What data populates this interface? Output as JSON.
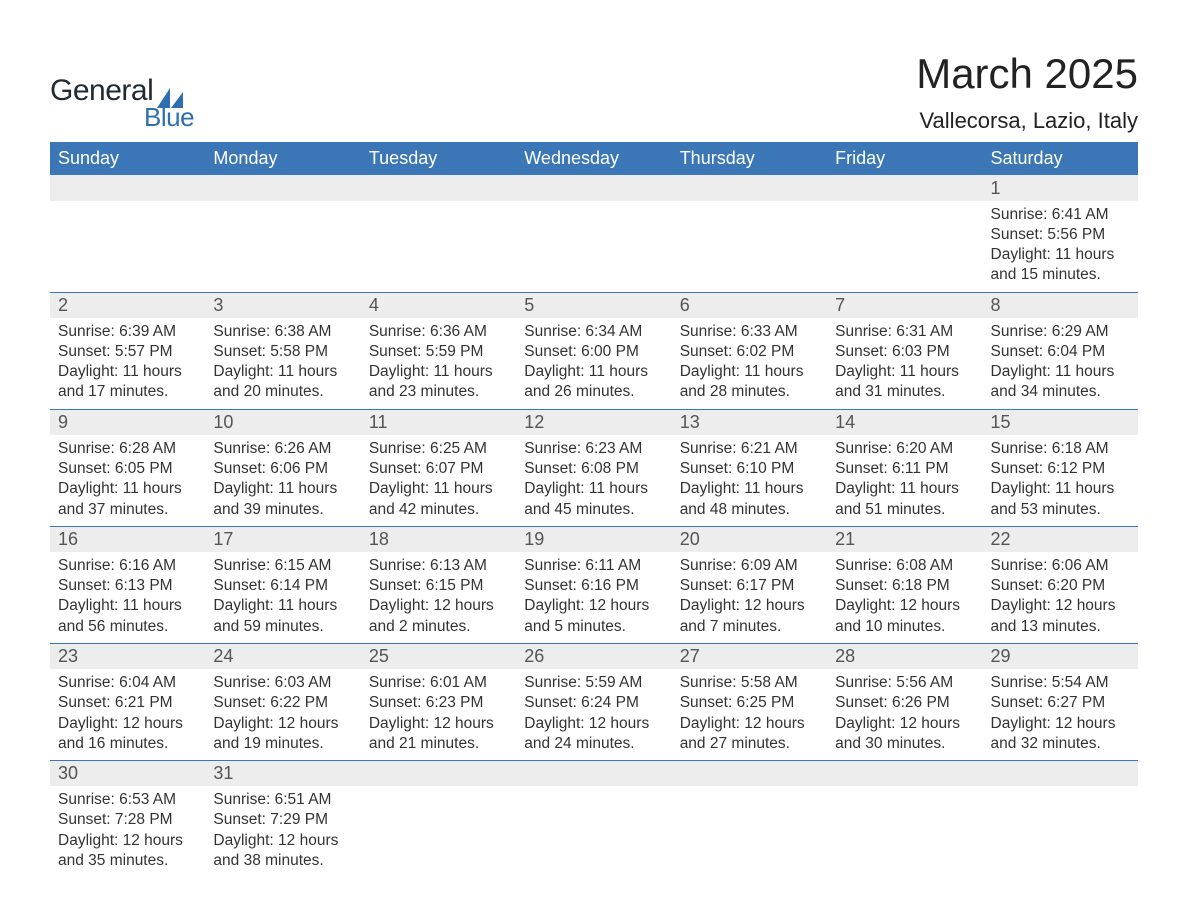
{
  "logo": {
    "word1": "General",
    "word2": "Blue",
    "text_color": "#1f2a33",
    "accent_color": "#2f6fb0"
  },
  "title": "March 2025",
  "location": "Vallecorsa, Lazio, Italy",
  "colors": {
    "header_bg": "#3b77b6",
    "header_text": "#ffffff",
    "daynum_bg": "#ededed",
    "daynum_text": "#555555",
    "body_text": "#333333",
    "row_divider": "#3b77b6",
    "page_bg": "#ffffff"
  },
  "fonts": {
    "title_size_pt": 32,
    "location_size_pt": 17,
    "header_size_pt": 14,
    "daynum_size_pt": 14,
    "body_size_pt": 12
  },
  "weekdays": [
    "Sunday",
    "Monday",
    "Tuesday",
    "Wednesday",
    "Thursday",
    "Friday",
    "Saturday"
  ],
  "weeks": [
    [
      null,
      null,
      null,
      null,
      null,
      null,
      {
        "n": "1",
        "sunrise": "Sunrise: 6:41 AM",
        "sunset": "Sunset: 5:56 PM",
        "d1": "Daylight: 11 hours",
        "d2": "and 15 minutes."
      }
    ],
    [
      {
        "n": "2",
        "sunrise": "Sunrise: 6:39 AM",
        "sunset": "Sunset: 5:57 PM",
        "d1": "Daylight: 11 hours",
        "d2": "and 17 minutes."
      },
      {
        "n": "3",
        "sunrise": "Sunrise: 6:38 AM",
        "sunset": "Sunset: 5:58 PM",
        "d1": "Daylight: 11 hours",
        "d2": "and 20 minutes."
      },
      {
        "n": "4",
        "sunrise": "Sunrise: 6:36 AM",
        "sunset": "Sunset: 5:59 PM",
        "d1": "Daylight: 11 hours",
        "d2": "and 23 minutes."
      },
      {
        "n": "5",
        "sunrise": "Sunrise: 6:34 AM",
        "sunset": "Sunset: 6:00 PM",
        "d1": "Daylight: 11 hours",
        "d2": "and 26 minutes."
      },
      {
        "n": "6",
        "sunrise": "Sunrise: 6:33 AM",
        "sunset": "Sunset: 6:02 PM",
        "d1": "Daylight: 11 hours",
        "d2": "and 28 minutes."
      },
      {
        "n": "7",
        "sunrise": "Sunrise: 6:31 AM",
        "sunset": "Sunset: 6:03 PM",
        "d1": "Daylight: 11 hours",
        "d2": "and 31 minutes."
      },
      {
        "n": "8",
        "sunrise": "Sunrise: 6:29 AM",
        "sunset": "Sunset: 6:04 PM",
        "d1": "Daylight: 11 hours",
        "d2": "and 34 minutes."
      }
    ],
    [
      {
        "n": "9",
        "sunrise": "Sunrise: 6:28 AM",
        "sunset": "Sunset: 6:05 PM",
        "d1": "Daylight: 11 hours",
        "d2": "and 37 minutes."
      },
      {
        "n": "10",
        "sunrise": "Sunrise: 6:26 AM",
        "sunset": "Sunset: 6:06 PM",
        "d1": "Daylight: 11 hours",
        "d2": "and 39 minutes."
      },
      {
        "n": "11",
        "sunrise": "Sunrise: 6:25 AM",
        "sunset": "Sunset: 6:07 PM",
        "d1": "Daylight: 11 hours",
        "d2": "and 42 minutes."
      },
      {
        "n": "12",
        "sunrise": "Sunrise: 6:23 AM",
        "sunset": "Sunset: 6:08 PM",
        "d1": "Daylight: 11 hours",
        "d2": "and 45 minutes."
      },
      {
        "n": "13",
        "sunrise": "Sunrise: 6:21 AM",
        "sunset": "Sunset: 6:10 PM",
        "d1": "Daylight: 11 hours",
        "d2": "and 48 minutes."
      },
      {
        "n": "14",
        "sunrise": "Sunrise: 6:20 AM",
        "sunset": "Sunset: 6:11 PM",
        "d1": "Daylight: 11 hours",
        "d2": "and 51 minutes."
      },
      {
        "n": "15",
        "sunrise": "Sunrise: 6:18 AM",
        "sunset": "Sunset: 6:12 PM",
        "d1": "Daylight: 11 hours",
        "d2": "and 53 minutes."
      }
    ],
    [
      {
        "n": "16",
        "sunrise": "Sunrise: 6:16 AM",
        "sunset": "Sunset: 6:13 PM",
        "d1": "Daylight: 11 hours",
        "d2": "and 56 minutes."
      },
      {
        "n": "17",
        "sunrise": "Sunrise: 6:15 AM",
        "sunset": "Sunset: 6:14 PM",
        "d1": "Daylight: 11 hours",
        "d2": "and 59 minutes."
      },
      {
        "n": "18",
        "sunrise": "Sunrise: 6:13 AM",
        "sunset": "Sunset: 6:15 PM",
        "d1": "Daylight: 12 hours",
        "d2": "and 2 minutes."
      },
      {
        "n": "19",
        "sunrise": "Sunrise: 6:11 AM",
        "sunset": "Sunset: 6:16 PM",
        "d1": "Daylight: 12 hours",
        "d2": "and 5 minutes."
      },
      {
        "n": "20",
        "sunrise": "Sunrise: 6:09 AM",
        "sunset": "Sunset: 6:17 PM",
        "d1": "Daylight: 12 hours",
        "d2": "and 7 minutes."
      },
      {
        "n": "21",
        "sunrise": "Sunrise: 6:08 AM",
        "sunset": "Sunset: 6:18 PM",
        "d1": "Daylight: 12 hours",
        "d2": "and 10 minutes."
      },
      {
        "n": "22",
        "sunrise": "Sunrise: 6:06 AM",
        "sunset": "Sunset: 6:20 PM",
        "d1": "Daylight: 12 hours",
        "d2": "and 13 minutes."
      }
    ],
    [
      {
        "n": "23",
        "sunrise": "Sunrise: 6:04 AM",
        "sunset": "Sunset: 6:21 PM",
        "d1": "Daylight: 12 hours",
        "d2": "and 16 minutes."
      },
      {
        "n": "24",
        "sunrise": "Sunrise: 6:03 AM",
        "sunset": "Sunset: 6:22 PM",
        "d1": "Daylight: 12 hours",
        "d2": "and 19 minutes."
      },
      {
        "n": "25",
        "sunrise": "Sunrise: 6:01 AM",
        "sunset": "Sunset: 6:23 PM",
        "d1": "Daylight: 12 hours",
        "d2": "and 21 minutes."
      },
      {
        "n": "26",
        "sunrise": "Sunrise: 5:59 AM",
        "sunset": "Sunset: 6:24 PM",
        "d1": "Daylight: 12 hours",
        "d2": "and 24 minutes."
      },
      {
        "n": "27",
        "sunrise": "Sunrise: 5:58 AM",
        "sunset": "Sunset: 6:25 PM",
        "d1": "Daylight: 12 hours",
        "d2": "and 27 minutes."
      },
      {
        "n": "28",
        "sunrise": "Sunrise: 5:56 AM",
        "sunset": "Sunset: 6:26 PM",
        "d1": "Daylight: 12 hours",
        "d2": "and 30 minutes."
      },
      {
        "n": "29",
        "sunrise": "Sunrise: 5:54 AM",
        "sunset": "Sunset: 6:27 PM",
        "d1": "Daylight: 12 hours",
        "d2": "and 32 minutes."
      }
    ],
    [
      {
        "n": "30",
        "sunrise": "Sunrise: 6:53 AM",
        "sunset": "Sunset: 7:28 PM",
        "d1": "Daylight: 12 hours",
        "d2": "and 35 minutes."
      },
      {
        "n": "31",
        "sunrise": "Sunrise: 6:51 AM",
        "sunset": "Sunset: 7:29 PM",
        "d1": "Daylight: 12 hours",
        "d2": "and 38 minutes."
      },
      null,
      null,
      null,
      null,
      null
    ]
  ]
}
